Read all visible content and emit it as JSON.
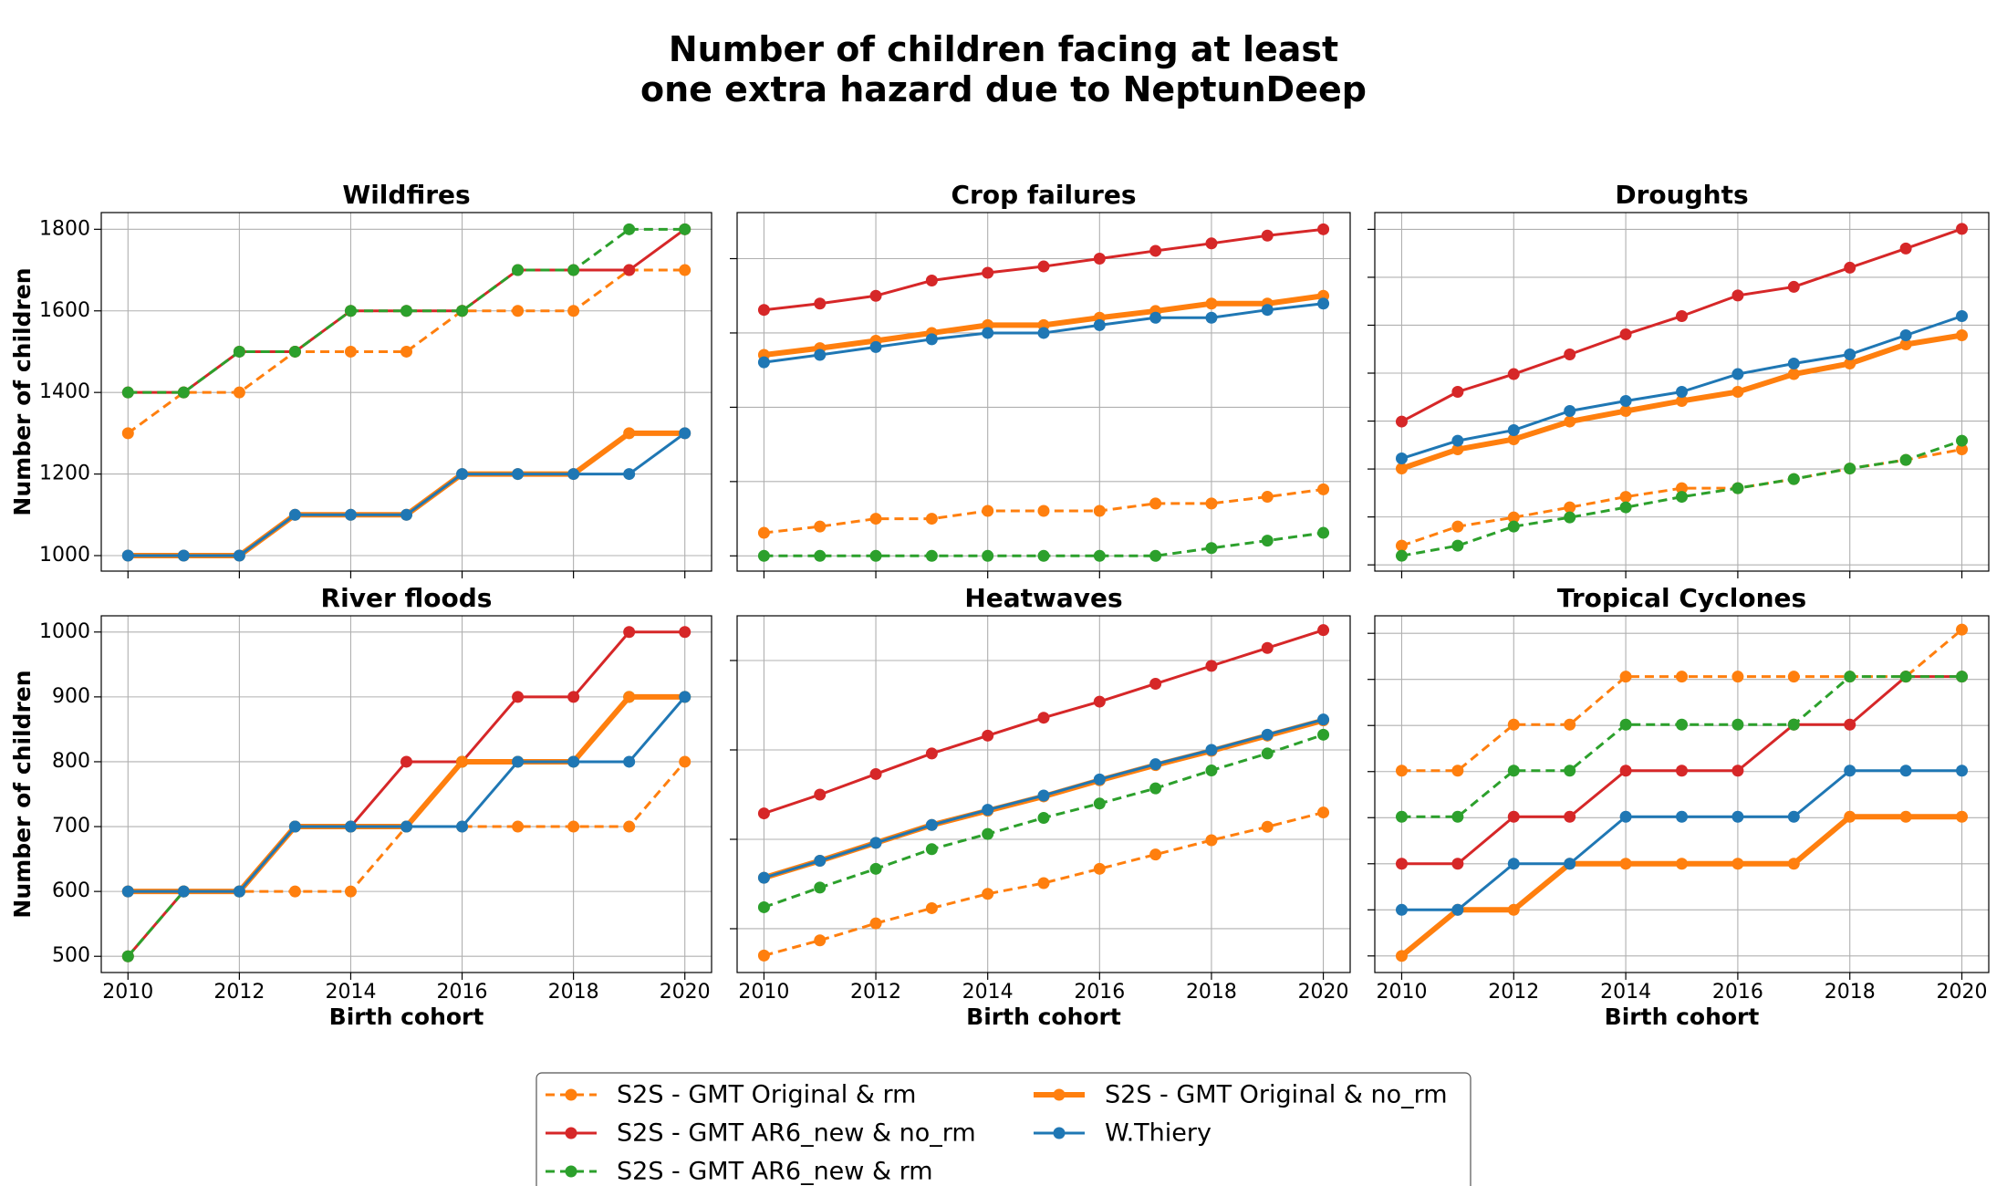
{
  "title": "Number of children facing at least\none extra hazard due to NeptunDeep",
  "chart_data": [
    {
      "type": "line",
      "title": "Wildfires",
      "ylabel": "Number of children",
      "ytick_labels": true,
      "xtick_labels": false,
      "grid": true,
      "x": [
        2010,
        2011,
        2012,
        2013,
        2014,
        2015,
        2016,
        2017,
        2018,
        2019,
        2020
      ],
      "xlim": [
        2009.52,
        2020.48
      ],
      "xticks": [
        2010,
        2012,
        2014,
        2016,
        2018,
        2020
      ],
      "ylim": [
        962,
        1841
      ],
      "yticks": [
        1000,
        1200,
        1400,
        1600,
        1800
      ],
      "series": [
        {
          "name": "S2S - GMT Original & rm",
          "color": "#ff7f0e",
          "linestyle": "dashed",
          "linewidth": 2,
          "values": [
            1300,
            1400,
            1400,
            1500,
            1500,
            1500,
            1600,
            1600,
            1600,
            1700,
            1700
          ]
        },
        {
          "name": "S2S - GMT AR6_new & no_rm",
          "color": "#d62728",
          "linestyle": "solid",
          "linewidth": 2,
          "values": [
            1400,
            1400,
            1500,
            1500,
            1600,
            1600,
            1600,
            1700,
            1700,
            1700,
            1800
          ]
        },
        {
          "name": "S2S - GMT AR6_new & rm",
          "color": "#2ca02c",
          "linestyle": "dashed",
          "linewidth": 2,
          "values": [
            1400,
            1400,
            1500,
            1500,
            1600,
            1600,
            1600,
            1700,
            1700,
            1800,
            1800
          ]
        },
        {
          "name": "S2S - GMT Original & no_rm",
          "color": "#ff7f0e",
          "linestyle": "solid",
          "linewidth": 4,
          "values": [
            1000,
            1000,
            1000,
            1100,
            1100,
            1100,
            1200,
            1200,
            1200,
            1300,
            1300
          ]
        },
        {
          "name": "W.Thiery",
          "color": "#1f77b4",
          "linestyle": "solid",
          "linewidth": 2,
          "values": [
            1000,
            1000,
            1000,
            1100,
            1100,
            1100,
            1200,
            1200,
            1200,
            1200,
            1300
          ]
        }
      ]
    },
    {
      "type": "line",
      "title": "Crop failures",
      "ytick_labels": false,
      "xtick_labels": false,
      "grid": true,
      "x": [
        2010,
        2011,
        2012,
        2013,
        2014,
        2015,
        2016,
        2017,
        2018,
        2019,
        2020
      ],
      "xlim": [
        2009.52,
        2020.48
      ],
      "xticks": [
        2010,
        2012,
        2014,
        2016,
        2018,
        2020
      ],
      "ylim": [
        959,
        1924
      ],
      "yticks": [
        1000,
        1200,
        1400,
        1600,
        1800
      ],
      "series": [
        {
          "name": "S2S - GMT Original & rm",
          "color": "#ff7f0e",
          "linestyle": "dashed",
          "linewidth": 2,
          "values": [
            1062,
            1079,
            1100,
            1100,
            1121,
            1121,
            1121,
            1141,
            1141,
            1159,
            1179
          ]
        },
        {
          "name": "S2S - GMT AR6_new & no_rm",
          "color": "#d62728",
          "linestyle": "solid",
          "linewidth": 2,
          "values": [
            1662,
            1679,
            1700,
            1741,
            1762,
            1779,
            1800,
            1821,
            1841,
            1862,
            1879
          ]
        },
        {
          "name": "S2S - GMT AR6_new & rm",
          "color": "#2ca02c",
          "linestyle": "dashed",
          "linewidth": 2,
          "values": [
            1000,
            1000,
            1000,
            1000,
            1000,
            1000,
            1000,
            1000,
            1021,
            1041,
            1062
          ]
        },
        {
          "name": "S2S - GMT Original & no_rm",
          "color": "#ff7f0e",
          "linestyle": "solid",
          "linewidth": 4,
          "values": [
            1541,
            1559,
            1579,
            1600,
            1621,
            1621,
            1641,
            1659,
            1679,
            1679,
            1700
          ]
        },
        {
          "name": "W.Thiery",
          "color": "#1f77b4",
          "linestyle": "solid",
          "linewidth": 2,
          "values": [
            1521,
            1541,
            1562,
            1583,
            1600,
            1600,
            1621,
            1641,
            1641,
            1662,
            1679
          ]
        }
      ]
    },
    {
      "type": "line",
      "title": "Droughts",
      "ytick_labels": false,
      "xtick_labels": false,
      "grid": true,
      "x": [
        2010,
        2011,
        2012,
        2013,
        2014,
        2015,
        2016,
        2017,
        2018,
        2019,
        2020
      ],
      "xlim": [
        2009.52,
        2020.48
      ],
      "xticks": [
        2010,
        2012,
        2014,
        2016,
        2018,
        2020
      ],
      "ylim": [
        987,
        1735
      ],
      "yticks": [
        1000,
        1100,
        1200,
        1300,
        1400,
        1500,
        1600,
        1700
      ],
      "series": [
        {
          "name": "S2S - GMT Original & rm",
          "color": "#ff7f0e",
          "linestyle": "dashed",
          "linewidth": 2,
          "values": [
            1040,
            1080,
            1099,
            1120,
            1142,
            1160,
            1160,
            1179,
            1201,
            1219,
            1241
          ]
        },
        {
          "name": "S2S - GMT AR6_new & no_rm",
          "color": "#d62728",
          "linestyle": "solid",
          "linewidth": 2,
          "values": [
            1299,
            1361,
            1398,
            1439,
            1481,
            1519,
            1562,
            1580,
            1620,
            1660,
            1701
          ]
        },
        {
          "name": "S2S - GMT AR6_new & rm",
          "color": "#2ca02c",
          "linestyle": "dashed",
          "linewidth": 2,
          "values": [
            1019,
            1040,
            1080,
            1099,
            1120,
            1142,
            1160,
            1179,
            1201,
            1219,
            1259
          ]
        },
        {
          "name": "S2S - GMT Original & no_rm",
          "color": "#ff7f0e",
          "linestyle": "solid",
          "linewidth": 4,
          "values": [
            1201,
            1241,
            1262,
            1299,
            1321,
            1342,
            1361,
            1398,
            1420,
            1460,
            1479
          ]
        },
        {
          "name": "W.Thiery",
          "color": "#1f77b4",
          "linestyle": "solid",
          "linewidth": 2,
          "values": [
            1222,
            1259,
            1281,
            1321,
            1342,
            1361,
            1398,
            1420,
            1439,
            1479,
            1519
          ]
        }
      ]
    },
    {
      "type": "line",
      "title": "River floods",
      "ylabel": "Number of children",
      "xlabel": "Birth cohort",
      "ytick_labels": true,
      "xtick_labels": true,
      "grid": true,
      "x": [
        2010,
        2011,
        2012,
        2013,
        2014,
        2015,
        2016,
        2017,
        2018,
        2019,
        2020
      ],
      "xlim": [
        2009.52,
        2020.48
      ],
      "xticks": [
        2010,
        2012,
        2014,
        2016,
        2018,
        2020
      ],
      "ylim": [
        475,
        1025
      ],
      "yticks": [
        500,
        600,
        700,
        800,
        900,
        1000
      ],
      "series": [
        {
          "name": "S2S - GMT Original & rm",
          "color": "#ff7f0e",
          "linestyle": "dashed",
          "linewidth": 2,
          "values": [
            600,
            600,
            600,
            600,
            600,
            700,
            700,
            700,
            700,
            700,
            800
          ]
        },
        {
          "name": "S2S - GMT AR6_new & no_rm",
          "color": "#d62728",
          "linestyle": "solid",
          "linewidth": 2,
          "values": [
            500,
            600,
            600,
            700,
            700,
            800,
            800,
            900,
            900,
            1000,
            1000
          ]
        },
        {
          "name": "S2S - GMT AR6_new & rm",
          "color": "#2ca02c",
          "linestyle": "dashed",
          "linewidth": 2,
          "values": [
            500,
            600,
            600,
            700,
            700,
            700,
            800,
            800,
            800,
            900,
            900
          ]
        },
        {
          "name": "S2S - GMT Original & no_rm",
          "color": "#ff7f0e",
          "linestyle": "solid",
          "linewidth": 4,
          "values": [
            600,
            600,
            600,
            700,
            700,
            700,
            800,
            800,
            800,
            900,
            900
          ]
        },
        {
          "name": "W.Thiery",
          "color": "#1f77b4",
          "linestyle": "solid",
          "linewidth": 2,
          "values": [
            600,
            600,
            600,
            700,
            700,
            700,
            700,
            800,
            800,
            800,
            900
          ]
        }
      ]
    },
    {
      "type": "line",
      "title": "Heatwaves",
      "xlabel": "Birth cohort",
      "ytick_labels": false,
      "xtick_labels": true,
      "grid": true,
      "x": [
        2010,
        2011,
        2012,
        2013,
        2014,
        2015,
        2016,
        2017,
        2018,
        2019,
        2020
      ],
      "xlim": [
        2009.52,
        2020.48
      ],
      "xticks": [
        2010,
        2012,
        2014,
        2016,
        2018,
        2020
      ],
      "ylim": [
        551,
        950
      ],
      "yticks": [
        600,
        700,
        800,
        900
      ],
      "series": [
        {
          "name": "S2S - GMT Original & rm",
          "color": "#ff7f0e",
          "linestyle": "dashed",
          "linewidth": 2,
          "values": [
            570,
            587,
            606,
            623,
            639,
            651,
            667,
            683,
            699,
            714,
            730
          ]
        },
        {
          "name": "S2S - GMT AR6_new & no_rm",
          "color": "#d62728",
          "linestyle": "solid",
          "linewidth": 2,
          "values": [
            729,
            750,
            773,
            796,
            816,
            836,
            854,
            874,
            894,
            914,
            934
          ]
        },
        {
          "name": "S2S - GMT AR6_new & rm",
          "color": "#2ca02c",
          "linestyle": "dashed",
          "linewidth": 2,
          "values": [
            624,
            646,
            667,
            689,
            706,
            724,
            740,
            757,
            777,
            796,
            817
          ]
        },
        {
          "name": "S2S - GMT Original & no_rm",
          "color": "#ff7f0e",
          "linestyle": "solid",
          "linewidth": 4,
          "values": [
            657,
            676,
            696,
            716,
            732,
            748,
            766,
            783,
            799,
            816,
            833
          ]
        },
        {
          "name": "W.Thiery",
          "color": "#1f77b4",
          "linestyle": "solid",
          "linewidth": 2,
          "values": [
            657,
            676,
            696,
            716,
            733,
            749,
            767,
            784,
            800,
            817,
            834
          ]
        }
      ]
    },
    {
      "type": "line",
      "title": "Tropical Cyclones",
      "xlabel": "Birth cohort",
      "ytick_labels": false,
      "xtick_labels": true,
      "grid": true,
      "x": [
        2010,
        2011,
        2012,
        2013,
        2014,
        2015,
        2016,
        2017,
        2018,
        2019,
        2020
      ],
      "xlim": [
        2009.52,
        2020.48
      ],
      "xticks": [
        2010,
        2012,
        2014,
        2016,
        2018,
        2020
      ],
      "ylim": [
        482,
        869
      ],
      "yticks": [
        500,
        550,
        600,
        650,
        700,
        750,
        800,
        850
      ],
      "series": [
        {
          "name": "S2S - GMT Original & rm",
          "color": "#ff7f0e",
          "linestyle": "dashed",
          "linewidth": 2,
          "values": [
            701,
            701,
            751,
            751,
            803,
            803,
            803,
            803,
            803,
            803,
            854
          ]
        },
        {
          "name": "S2S - GMT AR6_new & no_rm",
          "color": "#d62728",
          "linestyle": "solid",
          "linewidth": 2,
          "values": [
            600,
            600,
            651,
            651,
            701,
            701,
            701,
            751,
            751,
            803,
            803
          ]
        },
        {
          "name": "S2S - GMT AR6_new & rm",
          "color": "#2ca02c",
          "linestyle": "dashed",
          "linewidth": 2,
          "values": [
            651,
            651,
            701,
            701,
            751,
            751,
            751,
            751,
            803,
            803,
            803
          ]
        },
        {
          "name": "S2S - GMT Original & no_rm",
          "color": "#ff7f0e",
          "linestyle": "solid",
          "linewidth": 4,
          "values": [
            500,
            550,
            550,
            600,
            600,
            600,
            600,
            600,
            651,
            651,
            651
          ]
        },
        {
          "name": "W.Thiery",
          "color": "#1f77b4",
          "linestyle": "solid",
          "linewidth": 2,
          "values": [
            550,
            550,
            600,
            600,
            651,
            651,
            651,
            651,
            701,
            701,
            701
          ]
        }
      ]
    }
  ]
}
